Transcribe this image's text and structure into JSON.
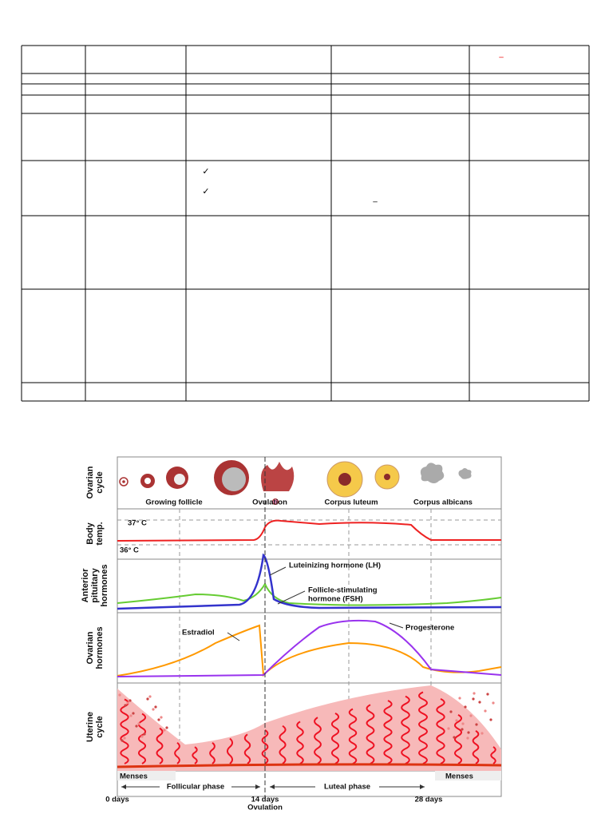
{
  "table": {
    "marks": [
      "✓",
      "✓",
      "–",
      "–"
    ]
  },
  "diagram": {
    "panels": [
      [
        "Ovarian",
        "cycle"
      ],
      [
        "Body",
        "temp."
      ],
      [
        "Anterior",
        "pituitary",
        "hormones"
      ],
      [
        "Ovarian",
        "hormones"
      ],
      [
        "Uterine",
        "cycle"
      ]
    ],
    "ovarian_stages": [
      "Growing follicle",
      "Ovulation",
      "Corpus luteum",
      "Corpus albicans"
    ],
    "temps": [
      "37° C",
      "36° C"
    ],
    "hormones": {
      "lh": "Luteinizing hormone (LH)",
      "fsh": [
        "Follicle-stimulating",
        "hormone (FSH)"
      ],
      "estradiol": "Estradiol",
      "progesterone": "Progesterone"
    },
    "menses": [
      "Menses",
      "Menses"
    ],
    "phases": [
      "Follicular phase",
      "Luteal phase"
    ],
    "days": [
      "0 days",
      "14 days",
      "28 days"
    ],
    "ovulation": "Ovulation"
  }
}
